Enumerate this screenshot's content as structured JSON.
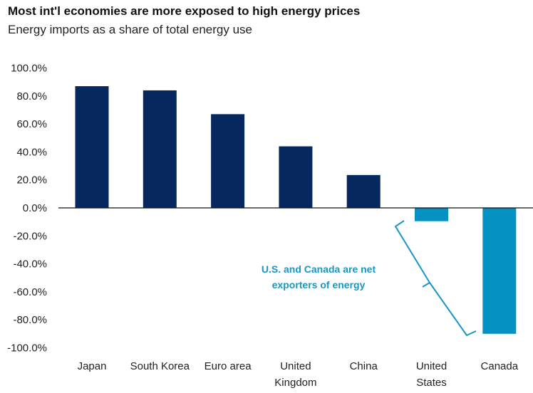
{
  "chart_data": {
    "type": "bar",
    "title": "Most int'l economies are more exposed to high energy prices",
    "subtitle": "Energy imports as a share of total energy use",
    "categories": [
      [
        "Japan"
      ],
      [
        "South Korea"
      ],
      [
        "Euro area"
      ],
      [
        "United",
        "Kingdom"
      ],
      [
        "China"
      ],
      [
        "United",
        "States"
      ],
      [
        "Canada"
      ]
    ],
    "values": [
      87.0,
      84.0,
      67.0,
      44.0,
      23.5,
      -9.5,
      -90.0
    ],
    "ylim": [
      -100,
      100
    ],
    "yticks": [
      "100.0%",
      "80.0%",
      "60.0%",
      "40.0%",
      "20.0%",
      "0.0%",
      "-20.0%",
      "-40.0%",
      "-60.0%",
      "-80.0%",
      "-100.0%"
    ],
    "grid": false,
    "colors": {
      "importer": "#06285e",
      "exporter": "#0592c2",
      "annotation": "#1a96c4"
    },
    "annotation": [
      "U.S. and Canada are net",
      "exporters of energy"
    ]
  }
}
